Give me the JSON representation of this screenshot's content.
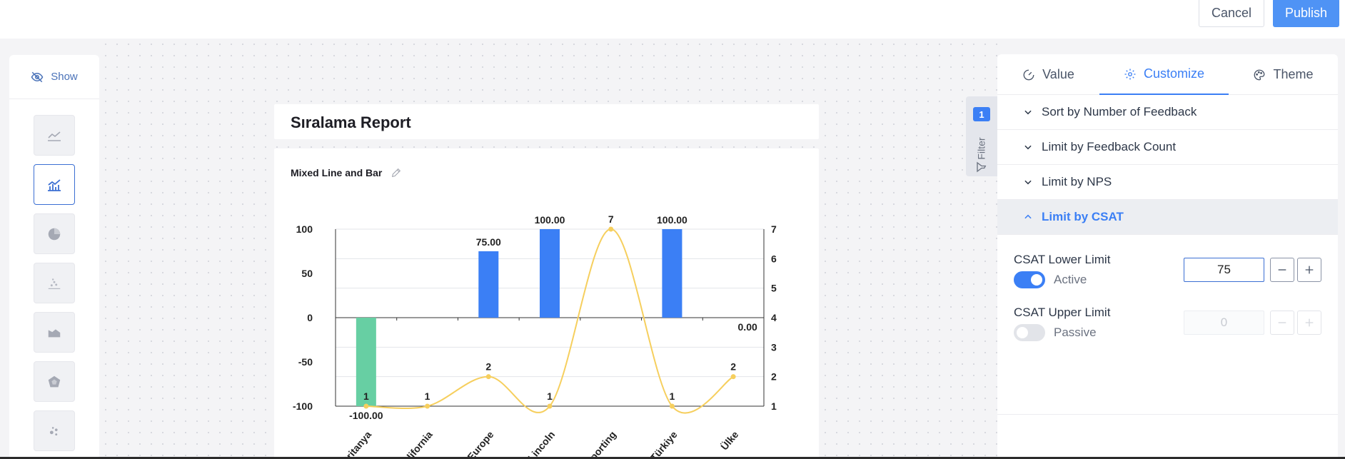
{
  "header": {
    "cancel_label": "Cancel",
    "publish_label": "Publish"
  },
  "left_panel": {
    "show_label": "Show",
    "show_icon": "eye-off-icon",
    "chart_types": [
      {
        "icon": "line-chart-icon",
        "active": false
      },
      {
        "icon": "mixed-line-bar-icon",
        "active": true
      },
      {
        "icon": "pie-chart-icon",
        "active": false
      },
      {
        "icon": "scatter-chart-icon",
        "active": false
      },
      {
        "icon": "area-chart-icon",
        "active": false
      },
      {
        "icon": "radar-chart-icon",
        "active": false
      },
      {
        "icon": "bubble-chart-icon",
        "active": false
      }
    ]
  },
  "report": {
    "title": "Sıralama Report",
    "chart_title": "Mixed Line and Bar"
  },
  "chart_data": {
    "type": "bar",
    "categories": [
      "Britanya",
      "California",
      "Europe",
      "Lincoln",
      "Reporting",
      "Türkiye",
      "Ülke"
    ],
    "series": [
      {
        "type": "bar",
        "values": [
          -100,
          null,
          75,
          100,
          null,
          100,
          0
        ],
        "labels": [
          "-100.00",
          "",
          "75.00",
          "100.00",
          "",
          "100.00",
          "0.00"
        ]
      },
      {
        "type": "line",
        "values": [
          1,
          1,
          2,
          1,
          7,
          1,
          2
        ]
      }
    ],
    "left_axis": {
      "ylim": [
        -100,
        100
      ],
      "ticks": [
        "100",
        "50",
        "0",
        "-50",
        "-100"
      ]
    },
    "right_axis": {
      "ylim": [
        1,
        7
      ],
      "ticks": [
        "7",
        "6",
        "5",
        "4",
        "3",
        "2",
        "1"
      ]
    },
    "colors": {
      "bar": "#3b7ff5",
      "negative_bar": "#67cfa3",
      "line": "#f6cf5e"
    },
    "grid": true
  },
  "filter": {
    "badge": "1",
    "label": "Filter"
  },
  "right_panel": {
    "tabs": [
      {
        "label": "Value",
        "icon": "gauge-icon",
        "active": false
      },
      {
        "label": "Customize",
        "icon": "gear-icon",
        "active": true
      },
      {
        "label": "Theme",
        "icon": "palette-icon",
        "active": false
      }
    ],
    "sections": [
      {
        "label": "Sort by Number of Feedback",
        "open": false
      },
      {
        "label": "Limit by Feedback Count",
        "open": false
      },
      {
        "label": "Limit by NPS",
        "open": false
      },
      {
        "label": "Limit by CSAT",
        "open": true
      }
    ],
    "csat_lower": {
      "label": "CSAT Lower Limit",
      "status": "Active",
      "enabled": true,
      "value": "75"
    },
    "csat_upper": {
      "label": "CSAT Upper Limit",
      "status": "Passive",
      "enabled": false,
      "value": "0"
    }
  }
}
